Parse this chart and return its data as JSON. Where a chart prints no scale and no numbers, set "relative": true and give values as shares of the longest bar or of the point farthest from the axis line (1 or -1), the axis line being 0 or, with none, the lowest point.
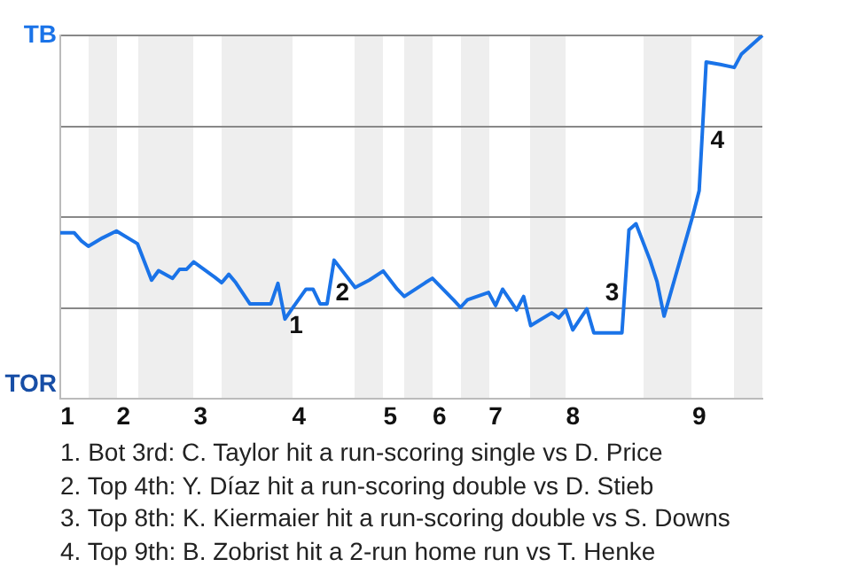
{
  "chart_data": {
    "type": "line",
    "relative": true,
    "categories": [
      null,
      "1",
      null,
      null,
      null,
      null,
      null,
      null,
      null,
      "2",
      null,
      null,
      null,
      null,
      null,
      null,
      null,
      null,
      null,
      null,
      "3",
      null,
      null,
      null,
      null,
      null,
      null,
      null,
      null,
      null,
      null,
      null,
      null,
      null,
      "4",
      null,
      null,
      null,
      null,
      null,
      null,
      null,
      null,
      null,
      null,
      null,
      null,
      "5",
      null,
      null,
      null,
      null,
      null,
      null,
      "6",
      null,
      null,
      null,
      null,
      null,
      null,
      null,
      "7",
      null,
      null,
      null,
      null,
      null,
      null,
      null,
      null,
      null,
      null,
      "8",
      null,
      null,
      null,
      null,
      null,
      null,
      null,
      null,
      null,
      null,
      null,
      null,
      null,
      null,
      null,
      null,
      null,
      "9",
      null,
      null,
      null,
      null,
      null,
      null,
      null,
      null,
      null
    ],
    "series": [
      {
        "color": "#1a73e8",
        "values": [
          0.457,
          null,
          0.457,
          0.435,
          0.42,
          null,
          0.443,
          null,
          0.462,
          null,
          null,
          0.427,
          null,
          0.327,
          0.353,
          null,
          0.332,
          0.357,
          0.357,
          0.377,
          null,
          null,
          0.335,
          0.32,
          0.343,
          0.32,
          null,
          0.262,
          null,
          null,
          0.262,
          0.318,
          0.22,
          0.248,
          null,
          0.302,
          0.302,
          0.262,
          0.262,
          0.382,
          0.357,
          null,
          0.307,
          null,
          0.327,
          null,
          0.352,
          null,
          0.302,
          0.282,
          null,
          null,
          0.32,
          0.332,
          null,
          null,
          0.273,
          0.252,
          0.273,
          null,
          null,
          0.293,
          0.257,
          0.302,
          null,
          0.245,
          0.282,
          0.202,
          null,
          null,
          0.237,
          0.223,
          0.245,
          0.19,
          null,
          0.248,
          0.182,
          null,
          null,
          null,
          0.182,
          0.465,
          0.482,
          null,
          0.382,
          0.323,
          0.228,
          null,
          null,
          null,
          0.498,
          0.573,
          0.927,
          null,
          0.92,
          null,
          0.912,
          0.948,
          null,
          null,
          1
        ]
      }
    ],
    "grid": "y",
    "legend": false,
    "marker": "none",
    "line_style": "solid",
    "annotations": [
      "TB",
      "TOR",
      "1",
      "2",
      "3",
      "4",
      "1. Bot 3rd: C. Taylor hit a run-scoring single vs D. Price",
      "2. Top 4th: Y. Díaz hit a run-scoring double vs D. Stieb",
      "3. Top 8th: K. Kiermaier hit a run-scoring double vs S. Downs",
      "4. Top 9th: B. Zobrist hit a 2-run home run vs T. Henke"
    ]
  }
}
